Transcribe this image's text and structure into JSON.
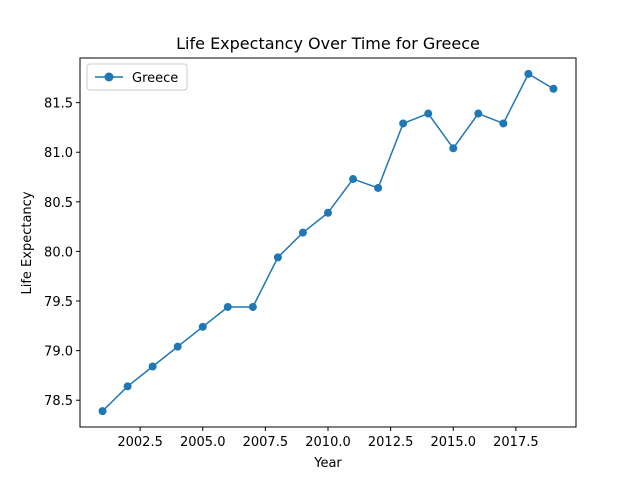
{
  "chart_data": {
    "type": "line",
    "title": "Life Expectancy Over Time for Greece",
    "xlabel": "Year",
    "ylabel": "Life Expectancy",
    "xlim": [
      2000.1,
      2019.9
    ],
    "ylim": [
      78.23,
      81.95
    ],
    "xticks": [
      2002.5,
      2005.0,
      2007.5,
      2010.0,
      2012.5,
      2015.0,
      2017.5
    ],
    "xtick_labels": [
      "2002.5",
      "2005.0",
      "2007.5",
      "2010.0",
      "2012.5",
      "2015.0",
      "2017.5"
    ],
    "yticks": [
      78.5,
      79.0,
      79.5,
      80.0,
      80.5,
      81.0,
      81.5
    ],
    "ytick_labels": [
      "78.5",
      "79.0",
      "79.5",
      "80.0",
      "80.5",
      "81.0",
      "81.5"
    ],
    "grid": false,
    "legend_position": "top-left",
    "series": [
      {
        "name": "Greece",
        "color": "#1f77b4",
        "marker": "circle",
        "x": [
          2001,
          2002,
          2003,
          2004,
          2005,
          2006,
          2007,
          2008,
          2009,
          2010,
          2011,
          2012,
          2013,
          2014,
          2015,
          2016,
          2017,
          2018,
          2019
        ],
        "y": [
          78.39,
          78.64,
          78.84,
          79.04,
          79.24,
          79.44,
          79.44,
          79.94,
          80.19,
          80.39,
          80.73,
          80.64,
          81.29,
          81.39,
          81.04,
          81.39,
          81.29,
          81.79,
          81.64
        ]
      }
    ]
  }
}
